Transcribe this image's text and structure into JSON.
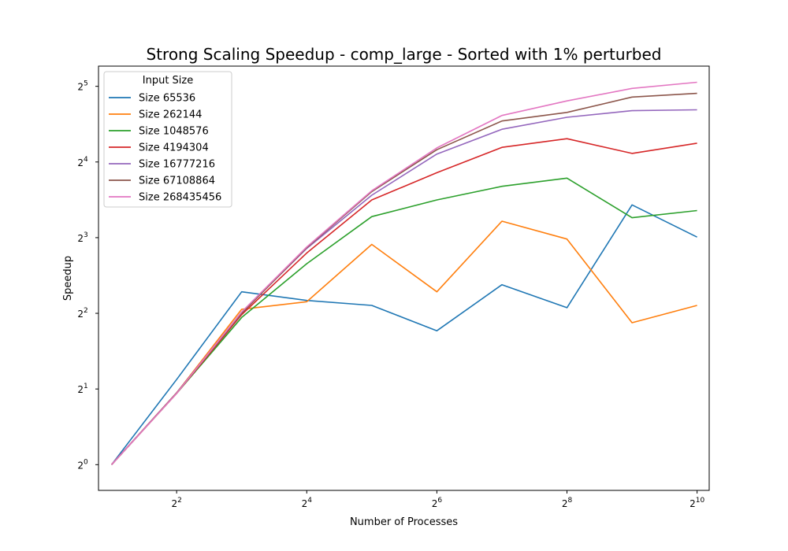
{
  "chart_data": {
    "type": "line",
    "title": "Strong Scaling Speedup - comp_large - Sorted with 1% perturbed",
    "xlabel": "Number of Processes",
    "ylabel": "Speedup",
    "x_scale": "log2",
    "y_scale": "log2",
    "x": [
      2,
      4,
      8,
      16,
      32,
      64,
      128,
      256,
      512,
      1024
    ],
    "xlim": [
      1.74,
      1165
    ],
    "ylim": [
      0.79,
      38.5
    ],
    "x_ticks": [
      4,
      16,
      64,
      256,
      1024
    ],
    "x_tick_labels": [
      [
        "2",
        "2"
      ],
      [
        "2",
        "4"
      ],
      [
        "2",
        "6"
      ],
      [
        "2",
        "8"
      ],
      [
        "2",
        "10"
      ]
    ],
    "y_ticks": [
      1,
      2,
      4,
      8,
      16,
      32
    ],
    "y_tick_labels": [
      [
        "2",
        "0"
      ],
      [
        "2",
        "1"
      ],
      [
        "2",
        "2"
      ],
      [
        "2",
        "3"
      ],
      [
        "2",
        "4"
      ],
      [
        "2",
        "5"
      ]
    ],
    "grid": false,
    "legend": {
      "title": "Input Size",
      "position": "top-left"
    },
    "series": [
      {
        "name": "Size 65536",
        "color": "#1f77b4",
        "values": [
          1.0,
          2.18,
          4.87,
          4.5,
          4.3,
          3.41,
          5.2,
          4.21,
          10.8,
          8.04
        ]
      },
      {
        "name": "Size 262144",
        "color": "#ff7f0e",
        "values": [
          1.0,
          1.93,
          4.15,
          4.45,
          7.52,
          4.87,
          9.3,
          7.9,
          3.67,
          4.3
        ]
      },
      {
        "name": "Size 1048576",
        "color": "#2ca02c",
        "values": [
          1.0,
          1.92,
          3.85,
          6.3,
          9.7,
          11.3,
          12.8,
          13.8,
          9.6,
          10.25
        ]
      },
      {
        "name": "Size 4194304",
        "color": "#d62728",
        "values": [
          1.0,
          1.92,
          3.95,
          6.95,
          11.3,
          14.5,
          18.3,
          19.8,
          17.3,
          19.0
        ]
      },
      {
        "name": "Size 16777216",
        "color": "#9467bd",
        "values": [
          1.0,
          1.93,
          4.03,
          7.25,
          11.8,
          17.2,
          21.6,
          24.1,
          25.6,
          25.8
        ]
      },
      {
        "name": "Size 67108864",
        "color": "#8c564b",
        "values": [
          1.0,
          1.93,
          4.0,
          7.3,
          12.2,
          17.9,
          23.3,
          25.2,
          29.0,
          30.0
        ]
      },
      {
        "name": "Size 268435456",
        "color": "#e377c2",
        "values": [
          1.0,
          1.92,
          4.05,
          7.35,
          12.3,
          18.2,
          24.5,
          28.0,
          31.4,
          33.2
        ]
      }
    ]
  }
}
